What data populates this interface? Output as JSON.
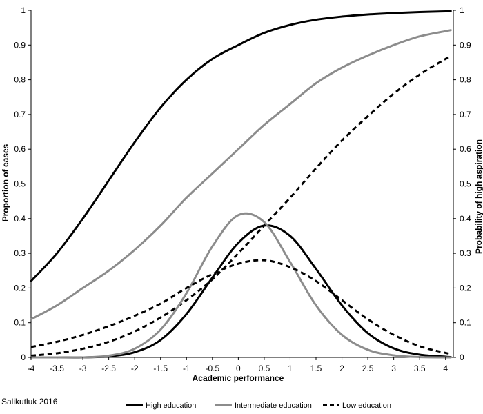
{
  "source_note": "Salikutluk 2016",
  "chart_data": {
    "type": "line",
    "title": "",
    "xlabel": "Academic performance",
    "ylabel_left": "Proportion of cases",
    "ylabel_right": "Probability of high aspiration",
    "xlim": [
      -4,
      4.15
    ],
    "ylim": [
      0,
      1
    ],
    "x_ticks": [
      "-4",
      "-3.5",
      "-3",
      "-2.5",
      "-2",
      "-1.5",
      "-1",
      "-0.5",
      "0",
      "0.5",
      "1",
      "1.5",
      "2",
      "2.5",
      "3",
      "3.5",
      "4"
    ],
    "y_ticks_left": [
      "0",
      "0.1",
      "0.2",
      "0.3",
      "0.4",
      "0.5",
      "0.6",
      "0.7",
      "0.8",
      "0.9",
      "1"
    ],
    "y_ticks_right": [
      "0",
      "0.1",
      "0.2",
      "0.3",
      "0.4",
      "0.5",
      "0.6",
      "0.7",
      "0.8",
      "0.9",
      "1"
    ],
    "grid": false,
    "legend_position": "bottom",
    "x": [
      -4,
      -3.5,
      -3,
      -2.5,
      -2,
      -1.5,
      -1,
      -0.5,
      0,
      0.5,
      1,
      1.5,
      2,
      2.5,
      3,
      3.5,
      4,
      4.1
    ],
    "series": [
      {
        "name": "High education",
        "kind": "probability",
        "color": "#000000",
        "style": "solid",
        "values": [
          0.22,
          0.3,
          0.4,
          0.51,
          0.62,
          0.72,
          0.8,
          0.86,
          0.9,
          0.935,
          0.958,
          0.973,
          0.982,
          0.988,
          0.992,
          0.995,
          0.997,
          0.998
        ]
      },
      {
        "name": "Intermediate education",
        "kind": "probability",
        "color": "#8c8c8c",
        "style": "solid",
        "values": [
          0.11,
          0.15,
          0.2,
          0.25,
          0.31,
          0.38,
          0.46,
          0.53,
          0.6,
          0.67,
          0.73,
          0.79,
          0.835,
          0.87,
          0.9,
          0.925,
          0.94,
          0.943
        ]
      },
      {
        "name": "Low education",
        "kind": "probability",
        "color": "#000000",
        "style": "dashed",
        "values": [
          0.005,
          0.012,
          0.025,
          0.045,
          0.075,
          0.115,
          0.165,
          0.225,
          0.3,
          0.38,
          0.46,
          0.545,
          0.625,
          0.695,
          0.76,
          0.815,
          0.86,
          0.868
        ]
      },
      {
        "name": "High education",
        "kind": "distribution",
        "color": "#000000",
        "style": "solid",
        "values": [
          0.0,
          0.0,
          0.0,
          0.003,
          0.015,
          0.05,
          0.125,
          0.23,
          0.33,
          0.38,
          0.35,
          0.255,
          0.15,
          0.07,
          0.026,
          0.008,
          0.002,
          0.001
        ]
      },
      {
        "name": "Intermediate education",
        "kind": "distribution",
        "color": "#8c8c8c",
        "style": "solid",
        "values": [
          0.0,
          0.0,
          0.0,
          0.005,
          0.025,
          0.08,
          0.185,
          0.32,
          0.41,
          0.39,
          0.275,
          0.15,
          0.065,
          0.022,
          0.006,
          0.001,
          0.0,
          0.0
        ]
      },
      {
        "name": "Low education",
        "kind": "distribution",
        "color": "#000000",
        "style": "dashed",
        "values": [
          0.03,
          0.045,
          0.065,
          0.09,
          0.12,
          0.155,
          0.2,
          0.24,
          0.27,
          0.28,
          0.26,
          0.22,
          0.165,
          0.11,
          0.065,
          0.032,
          0.013,
          0.01
        ]
      }
    ],
    "legend": [
      {
        "label": "High education",
        "color": "#000000",
        "style": "solid"
      },
      {
        "label": "Intermediate education",
        "color": "#8c8c8c",
        "style": "solid"
      },
      {
        "label": "Low education",
        "color": "#000000",
        "style": "dashed"
      }
    ]
  }
}
